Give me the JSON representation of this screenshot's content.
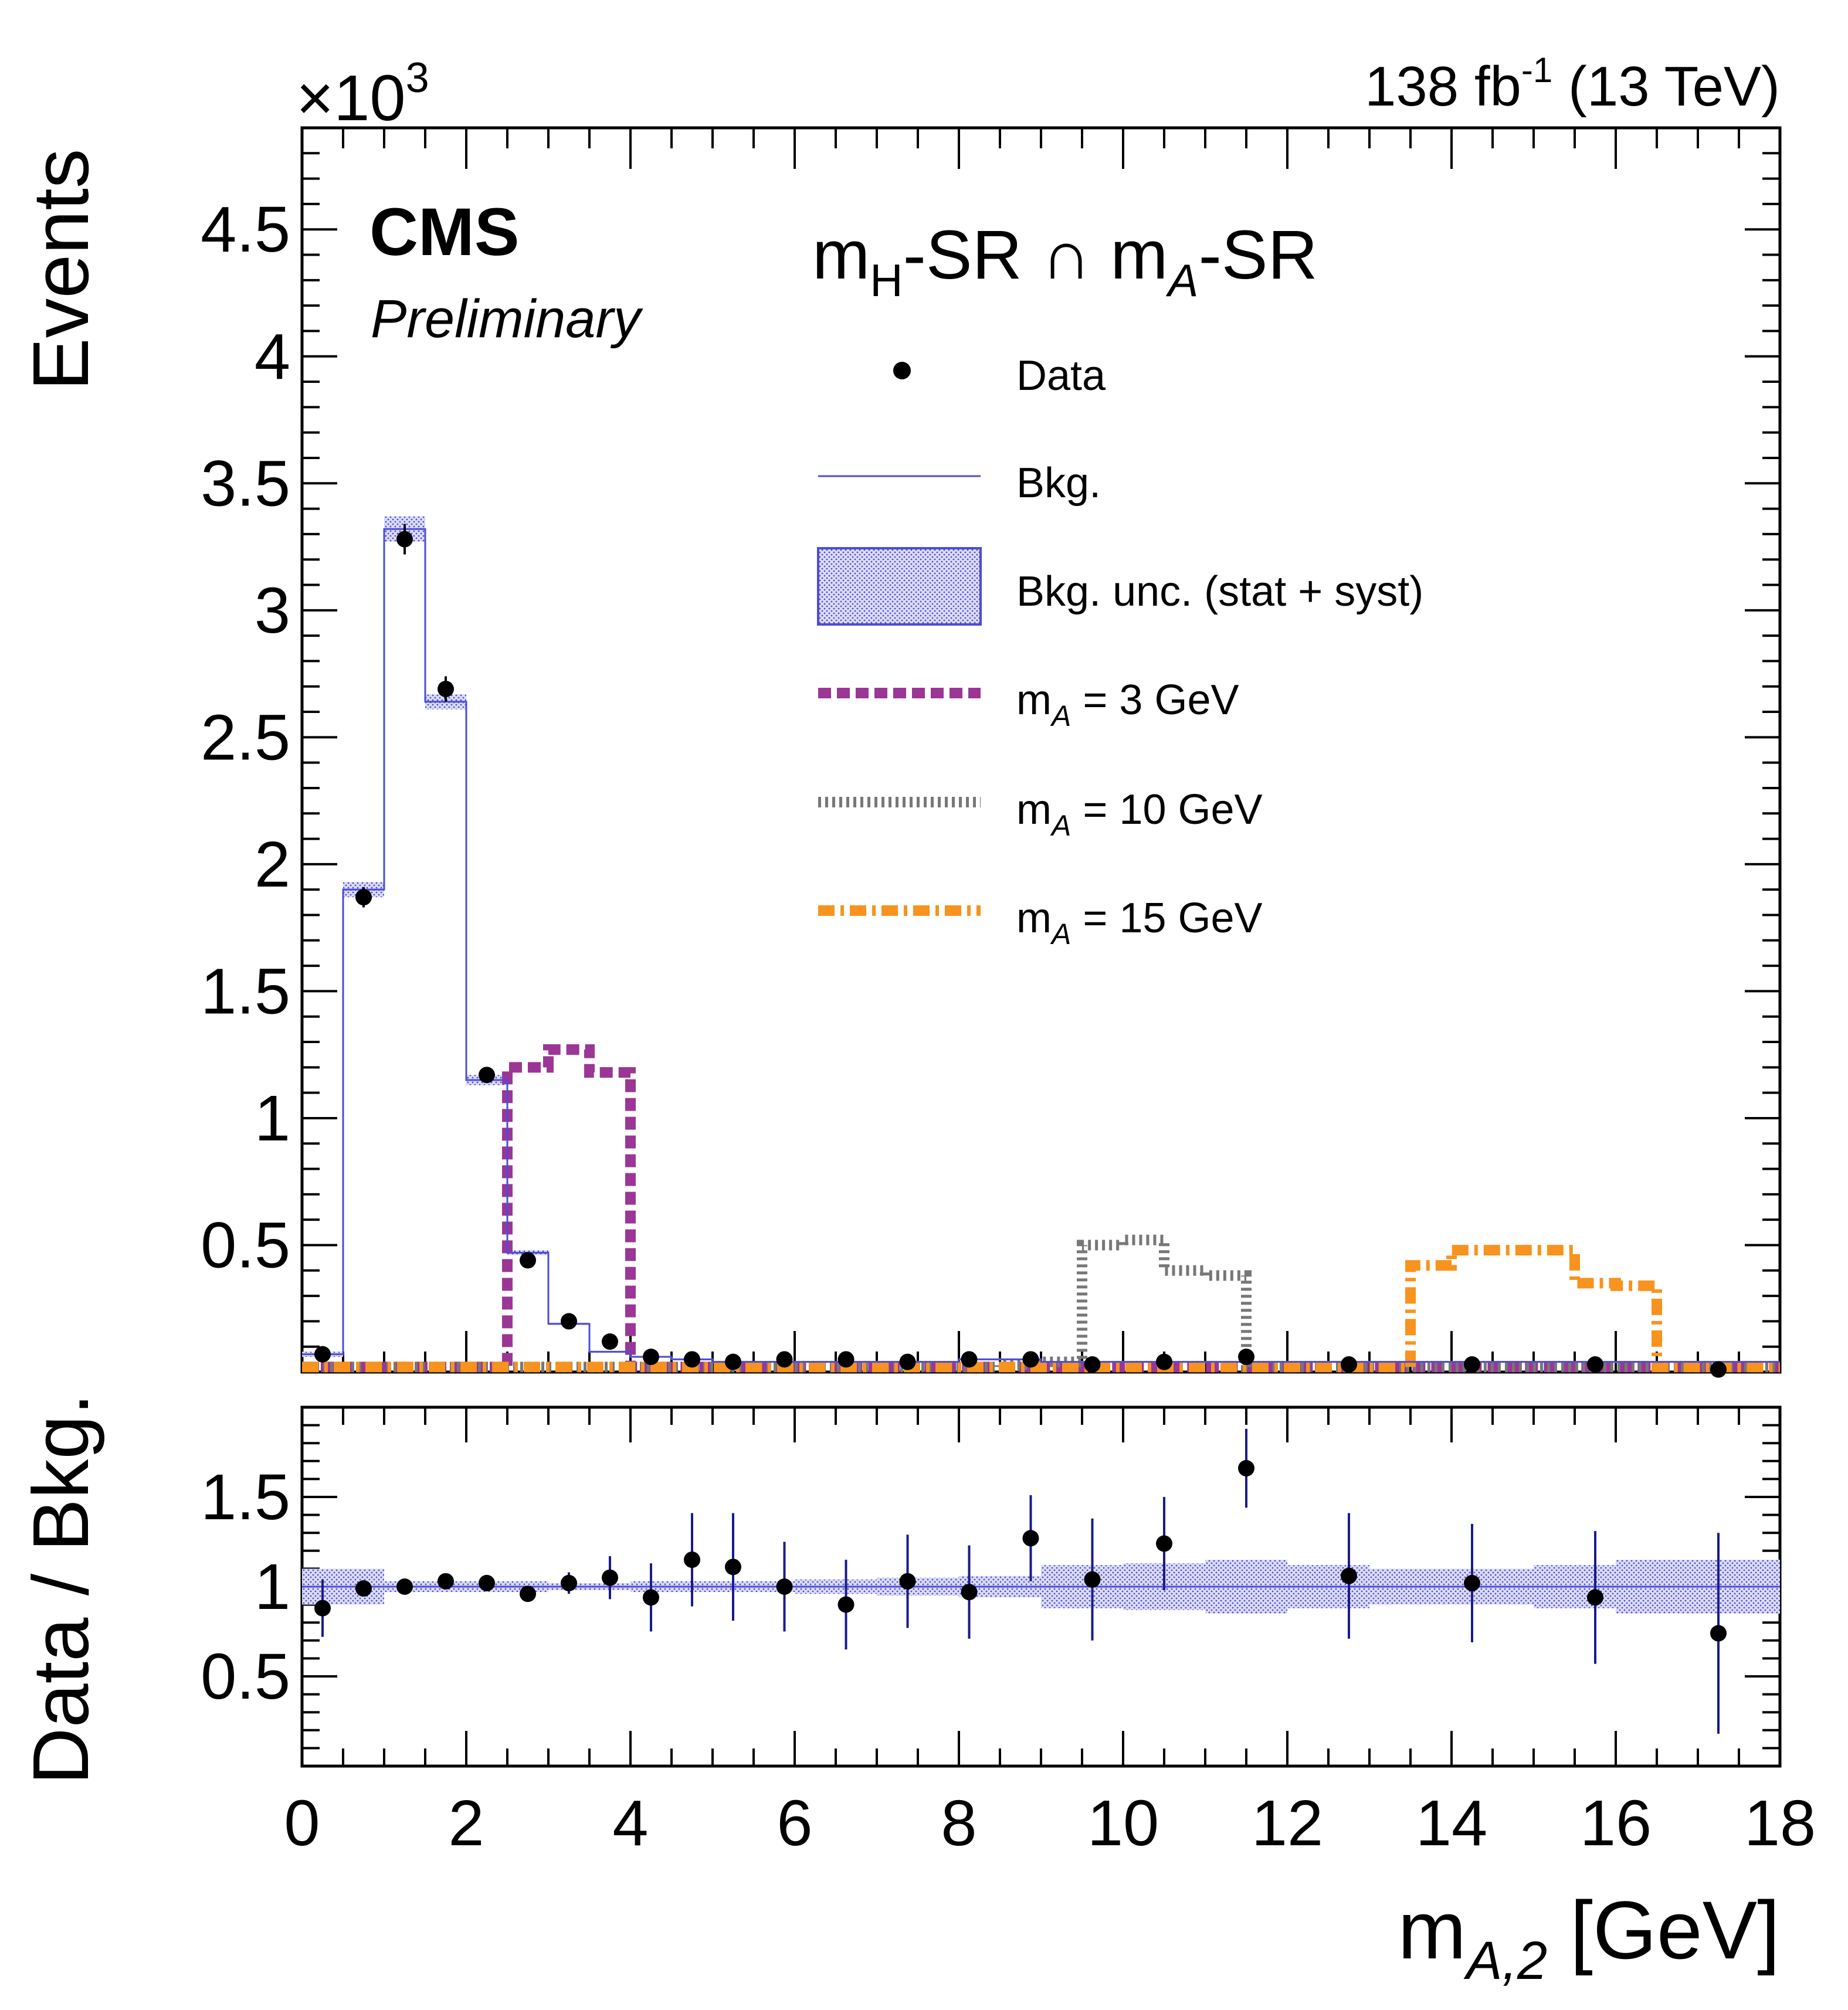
{
  "header": {
    "multiplier_base": "×10",
    "multiplier_exp": "3",
    "lumi_value": "138 fb",
    "lumi_exp": "-1",
    "lumi_energy": " (13 TeV)"
  },
  "labels": {
    "cms": "CMS",
    "preliminary": "Preliminary",
    "region_m": "m",
    "region_sub_H": "H",
    "region_mid": "-SR ∩ m",
    "region_sub_A": "A",
    "region_end": "-SR",
    "ylabel_top": "Events",
    "ylabel_bottom": "Data / Bkg.",
    "xlabel_m": "m",
    "xlabel_sub": "A,2",
    "xlabel_unit": " [GeV]"
  },
  "legend": [
    {
      "key": "data",
      "text": "Data",
      "sub": "",
      "tail": ""
    },
    {
      "key": "bkg",
      "text": "Bkg.",
      "sub": "",
      "tail": ""
    },
    {
      "key": "unc",
      "text": "Bkg. unc.  (stat + syst)",
      "sub": "",
      "tail": ""
    },
    {
      "key": "sig3",
      "text": "m",
      "sub": "A",
      "tail": " = 3 GeV"
    },
    {
      "key": "sig10",
      "text": "m",
      "sub": "A",
      "tail": " = 10 GeV"
    },
    {
      "key": "sig15",
      "text": "m",
      "sub": "A",
      "tail": " = 15 GeV"
    }
  ],
  "colors": {
    "bkg": "#4c4cd9",
    "unc_fill": "#b8b8ee",
    "sig3": "#9b3696",
    "sig10": "#777777",
    "sig15": "#f7931e",
    "data": "#000000",
    "ratio_err": "#1a1a8c"
  },
  "chart_data": [
    {
      "type": "histogram",
      "panel": "top",
      "xlim": [
        0,
        18
      ],
      "ylim": [
        0,
        4.9
      ],
      "ylabel": "Events",
      "y_multiplier": "×10^3",
      "yticks": [
        "0.5",
        "1",
        "1.5",
        "2",
        "2.5",
        "3",
        "3.5",
        "4",
        "4.5"
      ],
      "bin_edges": [
        0,
        0.5,
        1,
        1.5,
        2,
        2.5,
        3,
        3.5,
        4,
        4.5,
        5,
        5.5,
        6,
        6.5,
        7,
        7.5,
        8,
        8.5,
        9,
        9.5,
        10,
        10.5,
        11,
        11.5,
        12,
        12.5,
        13,
        13.5,
        14,
        14.5,
        15,
        15.5,
        16,
        16.5,
        17,
        17.5,
        18
      ],
      "series": [
        {
          "name": "Bkg.",
          "style": "line",
          "values": [
            0.07,
            1.9,
            3.32,
            2.64,
            1.15,
            0.47,
            0.19,
            0.08,
            0.06,
            0.05,
            0.04,
            0.04,
            0.04,
            0.04,
            0.04,
            0.04,
            0.05,
            0.05,
            0.04,
            0.04,
            0.04,
            0.04,
            0.04,
            0.04,
            0.04,
            0.04,
            0.04,
            0.04,
            0.04,
            0.04,
            0.04,
            0.04,
            0.04,
            0.04,
            0.04,
            0.04
          ],
          "unc": [
            0.01,
            0.03,
            0.05,
            0.03,
            0.02,
            0.01,
            0.005,
            0.004,
            0.003,
            0.003,
            0.002,
            0.002,
            0.002,
            0.002,
            0.002,
            0.002,
            0.002,
            0.002,
            0.002,
            0.002,
            0.002,
            0.002,
            0.002,
            0.002,
            0.002,
            0.002,
            0.002,
            0.002,
            0.002,
            0.002,
            0.002,
            0.002,
            0.002,
            0.002,
            0.002,
            0.002
          ]
        },
        {
          "name": "m_A = 3 GeV",
          "style": "dashed",
          "values": [
            0.02,
            0.02,
            0.02,
            0.02,
            0.02,
            1.2,
            1.27,
            1.18,
            0.02,
            0.02,
            0.02,
            0.02,
            0.02,
            0.02,
            0.02,
            0.02,
            0.02,
            0.02,
            0.02,
            0.02,
            0.02,
            0.02,
            0.02,
            0.02,
            0.02,
            0.02,
            0.02,
            0.02,
            0.02,
            0.02,
            0.02,
            0.02,
            0.02,
            0.02,
            0.02,
            0.02
          ]
        },
        {
          "name": "m_A = 10 GeV",
          "style": "dotted",
          "values": [
            0.02,
            0.02,
            0.02,
            0.02,
            0.02,
            0.02,
            0.02,
            0.02,
            0.02,
            0.02,
            0.02,
            0.02,
            0.02,
            0.02,
            0.02,
            0.02,
            0.02,
            0.03,
            0.04,
            0.5,
            0.52,
            0.4,
            0.38,
            0.02,
            0.02,
            0.02,
            0.02,
            0.02,
            0.02,
            0.02,
            0.02,
            0.02,
            0.02,
            0.02,
            0.02,
            0.02
          ]
        },
        {
          "name": "m_A = 15 GeV",
          "style": "dashdot",
          "values": [
            0.02,
            0.02,
            0.02,
            0.02,
            0.02,
            0.02,
            0.02,
            0.02,
            0.02,
            0.02,
            0.02,
            0.02,
            0.02,
            0.02,
            0.02,
            0.02,
            0.02,
            0.02,
            0.02,
            0.02,
            0.02,
            0.02,
            0.02,
            0.02,
            0.02,
            0.02,
            0.02,
            0.42,
            0.48,
            0.48,
            0.48,
            0.35,
            0.34,
            0.02,
            0.02,
            0.02
          ]
        }
      ],
      "data": {
        "name": "Data",
        "x": [
          0.25,
          0.75,
          1.25,
          1.75,
          2.25,
          2.75,
          3.25,
          3.75,
          4.25,
          4.75,
          5.25,
          5.875,
          6.625,
          7.375,
          8.125,
          8.875,
          9.625,
          10.5,
          11.5,
          12.75,
          14.25,
          15.75,
          17.25
        ],
        "y": [
          0.07,
          1.87,
          3.28,
          2.69,
          1.17,
          0.44,
          0.2,
          0.12,
          0.06,
          0.05,
          0.04,
          0.05,
          0.05,
          0.04,
          0.05,
          0.05,
          0.03,
          0.04,
          0.06,
          0.03,
          0.03,
          0.03,
          0.01
        ],
        "err": [
          0.01,
          0.04,
          0.06,
          0.05,
          0.03,
          0.02,
          0.01,
          0.01,
          0.005,
          0.005,
          0.005,
          0.005,
          0.005,
          0.005,
          0.005,
          0.005,
          0.005,
          0.005,
          0.005,
          0.005,
          0.005,
          0.005,
          0.005
        ]
      }
    },
    {
      "type": "scatter",
      "panel": "ratio",
      "xlim": [
        0,
        18
      ],
      "ylim": [
        0,
        2
      ],
      "ylabel": "Data / Bkg.",
      "xlabel": "m_A,2 [GeV]",
      "yticks": [
        "0.5",
        "1",
        "1.5"
      ],
      "xticks": [
        "0",
        "2",
        "4",
        "6",
        "8",
        "10",
        "12",
        "14",
        "16",
        "18"
      ],
      "band_edges": [
        0,
        1,
        2,
        3,
        4,
        5,
        6,
        7,
        8,
        9,
        10,
        11,
        12,
        13,
        14,
        15,
        16,
        17,
        18
      ],
      "band_halfwidth": [
        0.1,
        0.03,
        0.03,
        0.02,
        0.03,
        0.03,
        0.04,
        0.05,
        0.06,
        0.12,
        0.13,
        0.15,
        0.12,
        0.1,
        0.1,
        0.12,
        0.15,
        0.15
      ],
      "data": {
        "x": [
          0.25,
          0.75,
          1.25,
          1.75,
          2.25,
          2.75,
          3.25,
          3.75,
          4.25,
          4.75,
          5.25,
          5.875,
          6.625,
          7.375,
          8.125,
          8.875,
          9.625,
          10.5,
          11.5,
          12.75,
          14.25,
          15.75,
          17.25
        ],
        "y": [
          0.88,
          0.99,
          1.0,
          1.03,
          1.02,
          0.96,
          1.02,
          1.05,
          0.94,
          1.15,
          1.11,
          1.0,
          0.9,
          1.03,
          0.97,
          1.27,
          1.04,
          1.24,
          1.66,
          1.06,
          1.02,
          0.94,
          0.74
        ],
        "err": [
          0.16,
          0.03,
          0.03,
          0.03,
          0.03,
          0.03,
          0.06,
          0.12,
          0.19,
          0.26,
          0.3,
          0.25,
          0.25,
          0.26,
          0.26,
          0.24,
          0.34,
          0.26,
          0.22,
          0.35,
          0.33,
          0.37,
          0.56
        ]
      }
    }
  ]
}
